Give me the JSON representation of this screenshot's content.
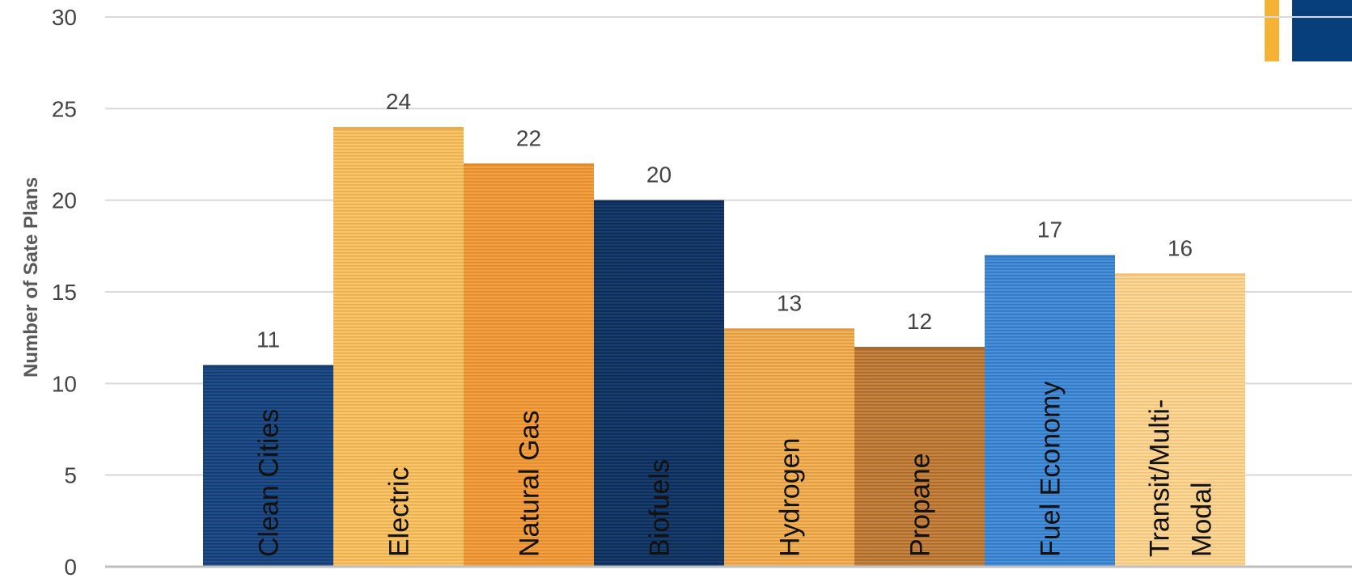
{
  "chart_data": {
    "type": "bar",
    "categories": [
      "Clean Cities",
      "Electric",
      "Natural Gas",
      "Biofuels",
      "Hydrogen",
      "Propane",
      "Fuel Economy",
      "Transit/Multi-Modal"
    ],
    "category_lines": [
      [
        "Clean Cities"
      ],
      [
        "Electric"
      ],
      [
        "Natural Gas"
      ],
      [
        "Biofuels"
      ],
      [
        "Hydrogen"
      ],
      [
        "Propane"
      ],
      [
        "Fuel Economy"
      ],
      [
        "Transit/Multi-",
        "Modal"
      ]
    ],
    "values": [
      11,
      24,
      22,
      20,
      13,
      12,
      17,
      16
    ],
    "title": "",
    "xlabel": "",
    "ylabel": "Number of Sate Plans",
    "ylim": [
      0,
      30
    ],
    "yticks": [
      0,
      5,
      10,
      15,
      20,
      25,
      30
    ],
    "grid": true,
    "legend": "none",
    "bar_colors": [
      "#1f4e8c",
      "#f8c56a",
      "#f2a041",
      "#163d6e",
      "#f3b359",
      "#c8843f",
      "#4a90d9",
      "#fcd898"
    ],
    "stripe_colors": [
      "#14396a",
      "#e9ae4b",
      "#e08a2b",
      "#0d2b52",
      "#df9a3f",
      "#a86a2e",
      "#2f77c4",
      "#efc277"
    ],
    "gridline_color": "#d9d9d9",
    "baseline_color": "#bfbfbf"
  }
}
